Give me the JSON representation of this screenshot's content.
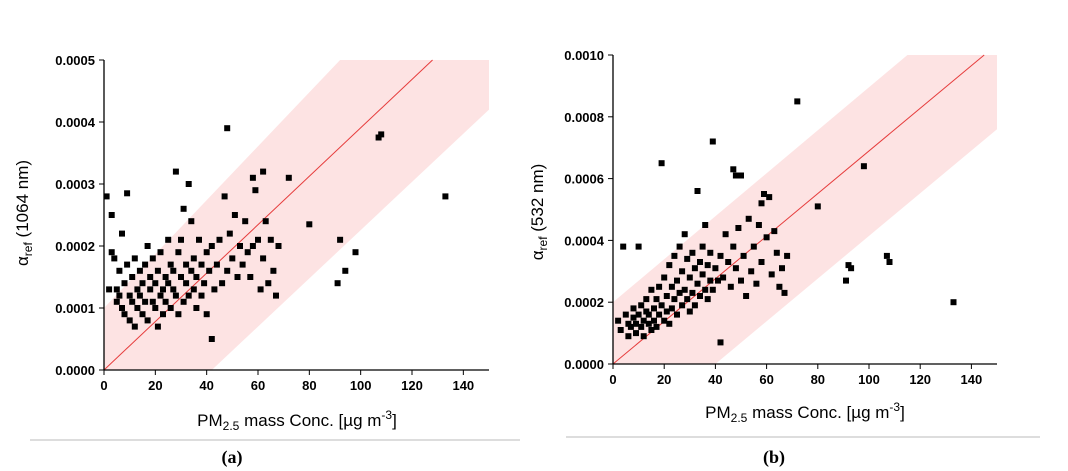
{
  "panels": [
    {
      "label": "(a)"
    },
    {
      "label": "(b)"
    }
  ],
  "colors": {
    "band": "#fde3e3",
    "fit_line": "#e63c3c",
    "points": "#000000",
    "axis": "#000000",
    "separator": "#bbbbbb"
  },
  "chart_data": [
    {
      "type": "scatter",
      "title": "",
      "xlabel": {
        "main": "PM",
        "sub": "2.5",
        "rest": " mass Conc. [µg m",
        "sup": "-3",
        "end": "]"
      },
      "ylabel": {
        "main": "α",
        "sub": "ref",
        "rest": " (1064 nm)"
      },
      "xlim": [
        0,
        150
      ],
      "ylim": [
        0,
        0.0005
      ],
      "xticks": [
        0,
        20,
        40,
        60,
        80,
        100,
        120,
        140
      ],
      "yticks": [
        "0.0000",
        "0.0001",
        "0.0002",
        "0.0003",
        "0.0004",
        "0.0005"
      ],
      "fit_line": [
        [
          0,
          0
        ],
        [
          128,
          0.0005
        ]
      ],
      "band_upper": [
        [
          0,
          0.0001
        ],
        [
          92,
          0.0005
        ],
        [
          150,
          0.0005
        ]
      ],
      "band_lower": [
        [
          42,
          0
        ],
        [
          150,
          0.00042
        ]
      ],
      "points": [
        [
          1,
          0.00028
        ],
        [
          2,
          0.00013
        ],
        [
          3,
          0.00025
        ],
        [
          3,
          0.00019
        ],
        [
          4,
          0.00018
        ],
        [
          5,
          0.00013
        ],
        [
          5,
          0.00011
        ],
        [
          6,
          0.00012
        ],
        [
          6,
          0.00016
        ],
        [
          7,
          0.00022
        ],
        [
          7,
          0.0001
        ],
        [
          8,
          0.00014
        ],
        [
          8,
          9e-05
        ],
        [
          9,
          0.000285
        ],
        [
          9,
          0.00017
        ],
        [
          10,
          0.00012
        ],
        [
          10,
          8e-05
        ],
        [
          11,
          0.00015
        ],
        [
          11,
          0.00011
        ],
        [
          12,
          0.00018
        ],
        [
          12,
          7e-05
        ],
        [
          13,
          0.00013
        ],
        [
          13,
          0.0001
        ],
        [
          14,
          0.00016
        ],
        [
          14,
          0.00012
        ],
        [
          15,
          9e-05
        ],
        [
          15,
          0.00014
        ],
        [
          16,
          0.00017
        ],
        [
          16,
          0.00011
        ],
        [
          17,
          0.0002
        ],
        [
          17,
          8e-05
        ],
        [
          18,
          0.00013
        ],
        [
          18,
          0.00015
        ],
        [
          19,
          0.00011
        ],
        [
          19,
          0.00018
        ],
        [
          20,
          0.0001
        ],
        [
          20,
          0.00014
        ],
        [
          21,
          0.00016
        ],
        [
          21,
          7e-05
        ],
        [
          22,
          0.00012
        ],
        [
          22,
          0.00019
        ],
        [
          23,
          0.00013
        ],
        [
          23,
          9e-05
        ],
        [
          24,
          0.00015
        ],
        [
          24,
          0.00011
        ],
        [
          25,
          0.00021
        ],
        [
          25,
          0.00014
        ],
        [
          26,
          0.00017
        ],
        [
          26,
          0.0001
        ],
        [
          27,
          0.00013
        ],
        [
          27,
          0.00016
        ],
        [
          28,
          0.00032
        ],
        [
          28,
          0.00012
        ],
        [
          29,
          0.00019
        ],
        [
          29,
          9e-05
        ],
        [
          30,
          0.00015
        ],
        [
          30,
          0.00021
        ],
        [
          31,
          0.00011
        ],
        [
          31,
          0.00026
        ],
        [
          32,
          0.00014
        ],
        [
          32,
          0.00017
        ],
        [
          33,
          0.0003
        ],
        [
          33,
          0.00012
        ],
        [
          34,
          0.00016
        ],
        [
          34,
          0.00024
        ],
        [
          35,
          0.00013
        ],
        [
          35,
          0.00018
        ],
        [
          36,
          0.0001
        ],
        [
          36,
          0.00015
        ],
        [
          37,
          0.00021
        ],
        [
          38,
          0.00012
        ],
        [
          38,
          0.00017
        ],
        [
          39,
          0.00014
        ],
        [
          40,
          0.00019
        ],
        [
          40,
          9e-05
        ],
        [
          41,
          0.00016
        ],
        [
          42,
          0.0002
        ],
        [
          42,
          5e-05
        ],
        [
          43,
          0.00013
        ],
        [
          44,
          0.00017
        ],
        [
          45,
          0.00021
        ],
        [
          46,
          0.00014
        ],
        [
          47,
          0.00028
        ],
        [
          48,
          0.00039
        ],
        [
          48,
          0.00016
        ],
        [
          49,
          0.00022
        ],
        [
          50,
          0.00018
        ],
        [
          51,
          0.00025
        ],
        [
          52,
          0.00015
        ],
        [
          53,
          0.0002
        ],
        [
          54,
          0.00017
        ],
        [
          55,
          0.00024
        ],
        [
          56,
          0.00019
        ],
        [
          57,
          0.00015
        ],
        [
          58,
          0.00031
        ],
        [
          58,
          0.0002
        ],
        [
          59,
          0.00029
        ],
        [
          60,
          0.00021
        ],
        [
          61,
          0.00013
        ],
        [
          62,
          0.00032
        ],
        [
          62,
          0.00018
        ],
        [
          63,
          0.00024
        ],
        [
          64,
          0.00014
        ],
        [
          65,
          0.00021
        ],
        [
          66,
          0.00016
        ],
        [
          67,
          0.00012
        ],
        [
          68,
          0.0002
        ],
        [
          72,
          0.00031
        ],
        [
          80,
          0.000235
        ],
        [
          91,
          0.00014
        ],
        [
          92,
          0.00021
        ],
        [
          94,
          0.00016
        ],
        [
          98,
          0.00019
        ],
        [
          107,
          0.000375
        ],
        [
          108,
          0.00038
        ],
        [
          133,
          0.00028
        ]
      ]
    },
    {
      "type": "scatter",
      "title": "",
      "xlabel": {
        "main": "PM",
        "sub": "2.5",
        "rest": " mass Conc. [µg m",
        "sup": "-3",
        "end": "]"
      },
      "ylabel": {
        "main": "α",
        "sub": "ref",
        "rest": " (532 nm)"
      },
      "xlim": [
        0,
        150
      ],
      "ylim": [
        0,
        0.001
      ],
      "xticks": [
        0,
        20,
        40,
        60,
        80,
        100,
        120,
        140
      ],
      "yticks": [
        "0.0000",
        "0.0002",
        "0.0004",
        "0.0006",
        "0.0008",
        "0.0010"
      ],
      "fit_line": [
        [
          0,
          0
        ],
        [
          145,
          0.001
        ]
      ],
      "band_upper": [
        [
          0,
          0.0002
        ],
        [
          115,
          0.001
        ],
        [
          150,
          0.001
        ]
      ],
      "band_lower": [
        [
          40,
          0
        ],
        [
          150,
          0.00076
        ]
      ],
      "points": [
        [
          2,
          0.00014
        ],
        [
          3,
          0.00011
        ],
        [
          4,
          0.00038
        ],
        [
          5,
          0.00016
        ],
        [
          6,
          0.00013
        ],
        [
          6,
          9e-05
        ],
        [
          7,
          0.00012
        ],
        [
          8,
          0.00015
        ],
        [
          8,
          0.00018
        ],
        [
          9,
          0.0001
        ],
        [
          9,
          0.00013
        ],
        [
          10,
          0.00038
        ],
        [
          10,
          0.00016
        ],
        [
          11,
          0.00012
        ],
        [
          11,
          0.00019
        ],
        [
          12,
          0.00014
        ],
        [
          12,
          9e-05
        ],
        [
          13,
          0.00017
        ],
        [
          13,
          0.00021
        ],
        [
          14,
          0.00013
        ],
        [
          14,
          0.00016
        ],
        [
          15,
          0.00011
        ],
        [
          15,
          0.00024
        ],
        [
          16,
          0.00014
        ],
        [
          16,
          0.00018
        ],
        [
          17,
          0.00021
        ],
        [
          17,
          0.00012
        ],
        [
          18,
          0.00016
        ],
        [
          18,
          0.00025
        ],
        [
          19,
          0.00065
        ],
        [
          19,
          0.00019
        ],
        [
          20,
          0.00014
        ],
        [
          20,
          0.00028
        ],
        [
          21,
          0.00017
        ],
        [
          21,
          0.00022
        ],
        [
          22,
          0.00032
        ],
        [
          22,
          0.00013
        ],
        [
          23,
          0.00025
        ],
        [
          23,
          0.00018
        ],
        [
          24,
          0.00021
        ],
        [
          24,
          0.00035
        ],
        [
          25,
          0.00016
        ],
        [
          25,
          0.00027
        ],
        [
          26,
          0.00023
        ],
        [
          26,
          0.00038
        ],
        [
          27,
          0.00019
        ],
        [
          27,
          0.0003
        ],
        [
          28,
          0.00024
        ],
        [
          28,
          0.00042
        ],
        [
          29,
          0.00021
        ],
        [
          29,
          0.00034
        ],
        [
          30,
          0.00028
        ],
        [
          30,
          0.00017
        ],
        [
          31,
          0.00036
        ],
        [
          31,
          0.00023
        ],
        [
          32,
          0.00031
        ],
        [
          32,
          0.00019
        ],
        [
          33,
          0.00056
        ],
        [
          33,
          0.00026
        ],
        [
          34,
          0.00033
        ],
        [
          34,
          0.00022
        ],
        [
          35,
          0.00038
        ],
        [
          35,
          0.00029
        ],
        [
          36,
          0.00024
        ],
        [
          36,
          0.00045
        ],
        [
          37,
          0.00032
        ],
        [
          37,
          0.00021
        ],
        [
          38,
          0.00027
        ],
        [
          38,
          0.00036
        ],
        [
          39,
          0.00072
        ],
        [
          39,
          0.00024
        ],
        [
          40,
          0.00031
        ],
        [
          41,
          0.00027
        ],
        [
          42,
          7e-05
        ],
        [
          42,
          0.00035
        ],
        [
          43,
          0.00028
        ],
        [
          44,
          0.00042
        ],
        [
          45,
          0.00033
        ],
        [
          46,
          0.00025
        ],
        [
          47,
          0.00063
        ],
        [
          47,
          0.00038
        ],
        [
          48,
          0.00061
        ],
        [
          48,
          0.00031
        ],
        [
          49,
          0.00044
        ],
        [
          50,
          0.00027
        ],
        [
          50,
          0.00061
        ],
        [
          51,
          0.00035
        ],
        [
          52,
          0.00022
        ],
        [
          53,
          0.00047
        ],
        [
          54,
          0.0003
        ],
        [
          55,
          0.00038
        ],
        [
          56,
          0.00026
        ],
        [
          57,
          0.00045
        ],
        [
          58,
          0.00052
        ],
        [
          58,
          0.00033
        ],
        [
          59,
          0.00055
        ],
        [
          60,
          0.00041
        ],
        [
          61,
          0.00054
        ],
        [
          62,
          0.00029
        ],
        [
          63,
          0.00043
        ],
        [
          64,
          0.00036
        ],
        [
          65,
          0.00025
        ],
        [
          66,
          0.00031
        ],
        [
          67,
          0.00023
        ],
        [
          68,
          0.00035
        ],
        [
          72,
          0.00085
        ],
        [
          80,
          0.00051
        ],
        [
          91,
          0.00027
        ],
        [
          92,
          0.00032
        ],
        [
          93,
          0.00031
        ],
        [
          98,
          0.00064
        ],
        [
          107,
          0.00035
        ],
        [
          108,
          0.00033
        ],
        [
          133,
          0.0002
        ]
      ]
    }
  ]
}
